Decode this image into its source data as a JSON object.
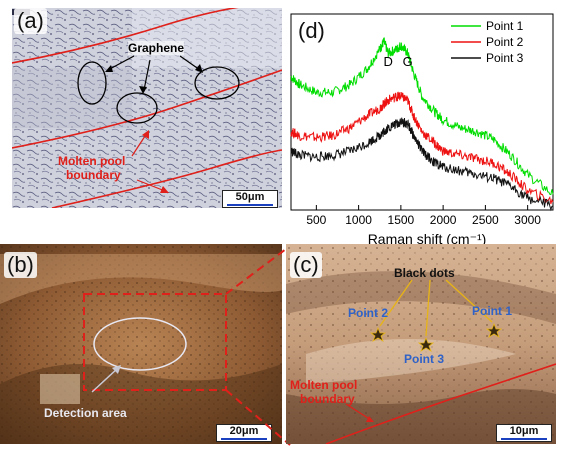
{
  "panels": {
    "a": {
      "label": "(a)",
      "graphene_label": "Graphene",
      "boundary_label_line1": "Molten pool",
      "boundary_label_line2": "boundary",
      "scale": "50μm"
    },
    "b": {
      "label": "(b)",
      "detection_label": "Detection area",
      "scale": "20μm"
    },
    "c": {
      "label": "(c)",
      "black_dots_label": "Black dots",
      "point1": "Point 1",
      "point2": "Point 2",
      "point3": "Point 3",
      "boundary_label_line1": "Molten pool",
      "boundary_label_line2": "boundary",
      "scale": "10μm"
    },
    "d": {
      "label": "(d)"
    }
  },
  "colors": {
    "boundary_red": "#e0201a",
    "annotation_blue": "#2f62c8",
    "scale_blue": "#1a3fbf",
    "yellow_arrow": "#e7b416"
  },
  "chart_data": {
    "type": "line",
    "title": "",
    "xlabel": "Raman shift (cm⁻¹)",
    "ylabel": "",
    "xlim": [
      200,
      3300
    ],
    "xticks": [
      500,
      1000,
      1500,
      2000,
      2500,
      3000
    ],
    "peak_labels": [
      {
        "text": "D",
        "x": 1350
      },
      {
        "text": "G",
        "x": 1580
      }
    ],
    "legend_position": "top-right",
    "x": [
      200,
      300,
      500,
      700,
      900,
      1100,
      1250,
      1300,
      1350,
      1450,
      1500,
      1580,
      1650,
      1750,
      1900,
      2000,
      2200,
      2400,
      2600,
      2800,
      3000,
      3300
    ],
    "series": [
      {
        "name": "Point 1",
        "color": "#00dd00",
        "values": [
          0.68,
          0.64,
          0.6,
          0.6,
          0.64,
          0.72,
          0.82,
          0.86,
          0.8,
          0.82,
          0.84,
          0.8,
          0.7,
          0.58,
          0.5,
          0.46,
          0.42,
          0.4,
          0.36,
          0.28,
          0.18,
          0.08
        ]
      },
      {
        "name": "Point 2",
        "color": "#ee1111",
        "values": [
          0.4,
          0.38,
          0.37,
          0.38,
          0.42,
          0.48,
          0.52,
          0.54,
          0.56,
          0.58,
          0.58,
          0.56,
          0.48,
          0.4,
          0.34,
          0.3,
          0.28,
          0.26,
          0.24,
          0.18,
          0.1,
          0.04
        ]
      },
      {
        "name": "Point 3",
        "color": "#111111",
        "values": [
          0.3,
          0.28,
          0.27,
          0.28,
          0.3,
          0.34,
          0.38,
          0.4,
          0.42,
          0.44,
          0.45,
          0.44,
          0.38,
          0.3,
          0.24,
          0.22,
          0.2,
          0.18,
          0.16,
          0.12,
          0.06,
          0.02
        ]
      }
    ]
  }
}
